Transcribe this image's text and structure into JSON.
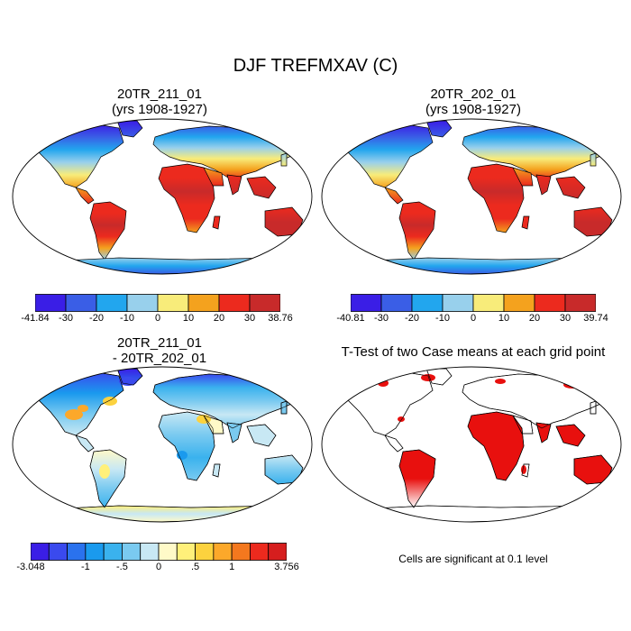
{
  "figure": {
    "main_title": "DJF TREFMXAV (C)",
    "panels": [
      {
        "id": "p1",
        "title": "20TR_211_01\n(yrs 1908-1927)"
      },
      {
        "id": "p2",
        "title": "20TR_202_01\n(yrs 1908-1927)"
      },
      {
        "id": "p3",
        "title": "20TR_211_01\n- 20TR_202_01"
      },
      {
        "id": "p4",
        "title": "T-Test of two Case means at each grid point"
      }
    ],
    "note": "Cells are significant at 0.1 level"
  },
  "colorbars": {
    "cb1": {
      "labels": [
        "-41.84",
        "-30",
        "-20",
        "-10",
        "0",
        "10",
        "20",
        "30",
        "38.76"
      ],
      "colors": [
        "#3a1ee6",
        "#3a5ee6",
        "#22a6ee",
        "#98d0ec",
        "#f8ec7a",
        "#f4a21e",
        "#ec2a1e",
        "#c82a2a"
      ]
    },
    "cb2": {
      "labels": [
        "-40.81",
        "-30",
        "-20",
        "-10",
        "0",
        "10",
        "20",
        "30",
        "39.74"
      ],
      "colors": [
        "#3a1ee6",
        "#3a5ee6",
        "#22a6ee",
        "#98d0ec",
        "#f8ec7a",
        "#f4a21e",
        "#ec2a1e",
        "#c82a2a"
      ]
    },
    "cb3": {
      "labels": [
        "-3.048",
        "-1",
        "-.5",
        "0",
        ".5",
        "1",
        "3.756"
      ],
      "label_slots": [
        0,
        3,
        5,
        7,
        9,
        11,
        14
      ],
      "colors": [
        "#3a1ee6",
        "#3a4aee",
        "#2a72ee",
        "#1a9aee",
        "#3ab2ee",
        "#7acaf0",
        "#c8e8f4",
        "#fffac8",
        "#fff07a",
        "#fcd23e",
        "#fca82a",
        "#f4781e",
        "#ec2a1e",
        "#d61e1e"
      ]
    }
  },
  "colors": {
    "ocean": "#ffffff",
    "significant": "#e8100e"
  }
}
